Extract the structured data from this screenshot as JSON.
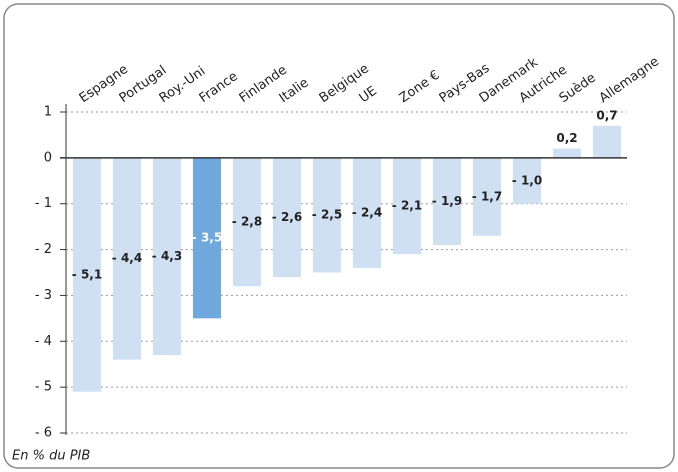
{
  "chart_data": {
    "type": "bar",
    "categories": [
      "Espagne",
      "Portugal",
      "Roy.-Uni",
      "France",
      "Finlande",
      "Italie",
      "Belgique",
      "UE",
      "Zone €",
      "Pays-Bas",
      "Danemark",
      "Autriche",
      "Suède",
      "Allemagne"
    ],
    "values": [
      -5.1,
      -4.4,
      -4.3,
      -3.5,
      -2.8,
      -2.6,
      -2.5,
      -2.4,
      -2.1,
      -1.9,
      -1.7,
      -1.0,
      0.2,
      0.7
    ],
    "value_labels": [
      "- 5,1",
      "- 4,4",
      "- 4,3",
      "- 3,5",
      "- 2,8",
      "- 2,6",
      "- 2,5",
      "- 2,4",
      "- 2,1",
      "- 1,9",
      "- 1,7",
      "- 1,0",
      "0,2",
      "0,7"
    ],
    "colors": [
      "#cfe0f3",
      "#cfe0f3",
      "#cfe0f3",
      "#6fa8dc",
      "#cfe0f3",
      "#cfe0f3",
      "#cfe0f3",
      "#cfe0f3",
      "#cfe0f3",
      "#cfe0f3",
      "#cfe0f3",
      "#cfe0f3",
      "#cfe0f3",
      "#cfe0f3"
    ],
    "ylim": [
      -6,
      1
    ],
    "yticks": [
      1,
      0,
      {
        "value": -1,
        "label": "- 1"
      },
      {
        "value": -2,
        "label": "- 2"
      },
      {
        "value": -3,
        "label": "- 3"
      },
      {
        "value": -4,
        "label": "- 4"
      },
      {
        "value": -5,
        "label": "- 5"
      },
      {
        "value": -6,
        "label": "- 6"
      }
    ],
    "grid": true,
    "note": "En % du PIB"
  }
}
